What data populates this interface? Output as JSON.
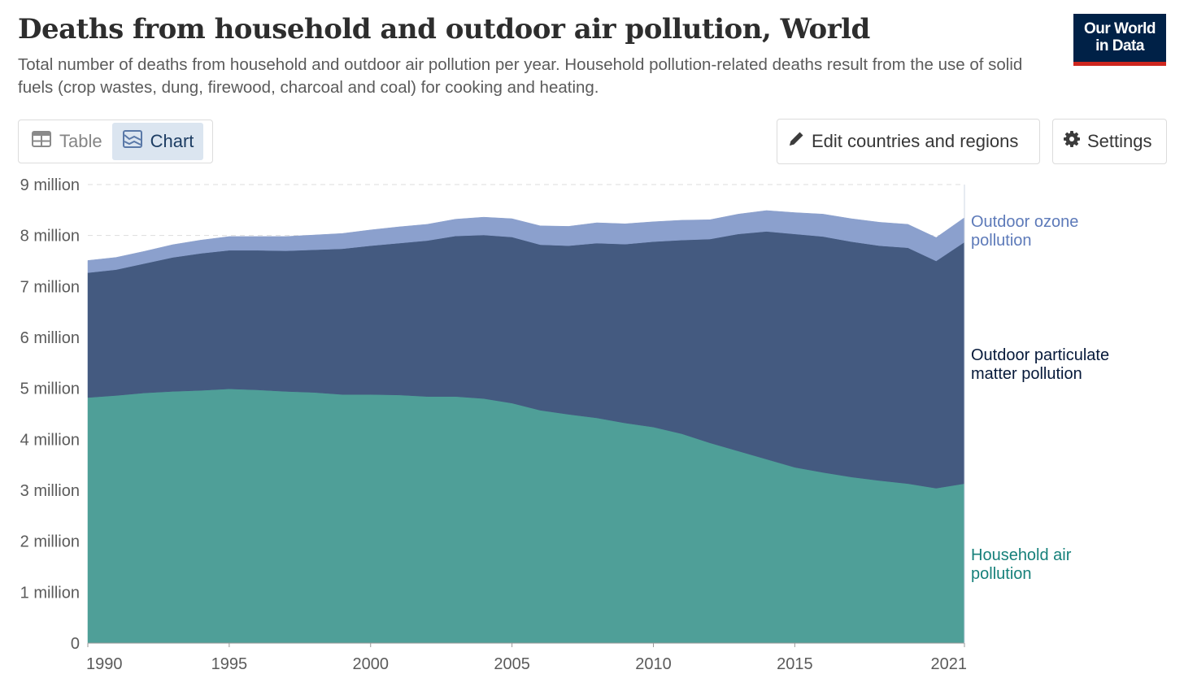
{
  "header": {
    "title": "Deaths from household and outdoor air pollution, World",
    "subtitle": "Total number of deaths from household and outdoor air pollution per year. Household pollution-related deaths result from the use of solid fuels (crop wastes, dung, firewood, charcoal and coal) for cooking and heating.",
    "logo_line1": "Our World",
    "logo_line2": "in Data"
  },
  "toolbar": {
    "table_label": "Table",
    "chart_label": "Chart",
    "active_tab": "Chart",
    "edit_label": "Edit countries and regions",
    "settings_label": "Settings"
  },
  "colors": {
    "household": "#4f9f98",
    "particulate": "#445a80",
    "ozone": "#8ba0cd",
    "household_label": "#16807a",
    "particulate_label": "#06193a",
    "ozone_label": "#5d7ab9",
    "logo_bg": "#002147",
    "logo_accent": "#ce261e"
  },
  "chart_data": {
    "type": "area",
    "stacked": true,
    "title": "Deaths from household and outdoor air pollution, World",
    "x": [
      1990,
      1991,
      1992,
      1993,
      1994,
      1995,
      1996,
      1997,
      1998,
      1999,
      2000,
      2001,
      2002,
      2003,
      2004,
      2005,
      2006,
      2007,
      2008,
      2009,
      2010,
      2011,
      2012,
      2013,
      2014,
      2015,
      2016,
      2017,
      2018,
      2019,
      2020,
      2021
    ],
    "series": [
      {
        "name": "Household air pollution",
        "values": [
          4.82,
          4.86,
          4.91,
          4.94,
          4.96,
          4.99,
          4.97,
          4.94,
          4.92,
          4.88,
          4.88,
          4.87,
          4.84,
          4.84,
          4.8,
          4.71,
          4.57,
          4.49,
          4.42,
          4.32,
          4.24,
          4.11,
          3.93,
          3.77,
          3.61,
          3.45,
          3.35,
          3.26,
          3.19,
          3.13,
          3.04,
          3.13
        ]
      },
      {
        "name": "Outdoor particulate matter pollution",
        "values": [
          2.45,
          2.47,
          2.54,
          2.63,
          2.69,
          2.72,
          2.74,
          2.76,
          2.8,
          2.86,
          2.92,
          2.98,
          3.06,
          3.15,
          3.21,
          3.26,
          3.25,
          3.31,
          3.43,
          3.51,
          3.64,
          3.8,
          4.0,
          4.26,
          4.47,
          4.58,
          4.63,
          4.62,
          4.61,
          4.63,
          4.46,
          4.74
        ]
      },
      {
        "name": "Outdoor ozone pollution",
        "values": [
          0.24,
          0.24,
          0.24,
          0.25,
          0.26,
          0.27,
          0.27,
          0.28,
          0.29,
          0.3,
          0.31,
          0.32,
          0.32,
          0.33,
          0.35,
          0.36,
          0.37,
          0.38,
          0.4,
          0.4,
          0.39,
          0.39,
          0.38,
          0.39,
          0.41,
          0.42,
          0.44,
          0.45,
          0.46,
          0.46,
          0.46,
          0.48
        ]
      }
    ],
    "series_labels": [
      {
        "key": "ozone",
        "line1": "Outdoor ozone",
        "line2": "pollution"
      },
      {
        "key": "particulate",
        "line1": "Outdoor particulate",
        "line2": "matter pollution"
      },
      {
        "key": "household",
        "line1": "Household air",
        "line2": "pollution"
      }
    ],
    "y_ticks": [
      "0",
      "1 million",
      "2 million",
      "3 million",
      "4 million",
      "5 million",
      "6 million",
      "7 million",
      "8 million",
      "9 million"
    ],
    "y_tick_values": [
      0,
      1,
      2,
      3,
      4,
      5,
      6,
      7,
      8,
      9
    ],
    "x_ticks": [
      "1990",
      "1995",
      "2000",
      "2005",
      "2010",
      "2015",
      "2021"
    ],
    "x_tick_values": [
      1990,
      1995,
      2000,
      2005,
      2010,
      2015,
      2021
    ],
    "xlim": [
      1990,
      2021
    ],
    "ylim": [
      0,
      9
    ],
    "grid": true,
    "xlabel": "",
    "ylabel": ""
  }
}
